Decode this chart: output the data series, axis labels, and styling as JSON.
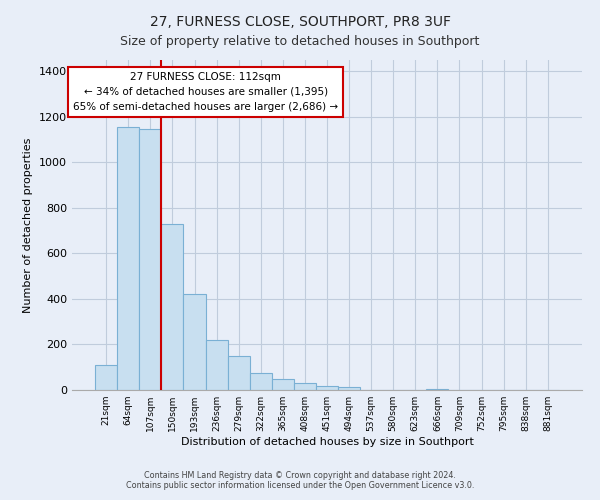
{
  "title": "27, FURNESS CLOSE, SOUTHPORT, PR8 3UF",
  "subtitle": "Size of property relative to detached houses in Southport",
  "xlabel": "Distribution of detached houses by size in Southport",
  "ylabel": "Number of detached properties",
  "bar_labels": [
    "21sqm",
    "64sqm",
    "107sqm",
    "150sqm",
    "193sqm",
    "236sqm",
    "279sqm",
    "322sqm",
    "365sqm",
    "408sqm",
    "451sqm",
    "494sqm",
    "537sqm",
    "580sqm",
    "623sqm",
    "666sqm",
    "709sqm",
    "752sqm",
    "795sqm",
    "838sqm",
    "881sqm"
  ],
  "bar_values": [
    110,
    1155,
    1145,
    730,
    420,
    220,
    150,
    75,
    50,
    30,
    18,
    13,
    0,
    0,
    0,
    5,
    0,
    0,
    0,
    0,
    0
  ],
  "bar_color": "#c8dff0",
  "bar_edge_color": "#7ab0d4",
  "highlight_bar_index": 2,
  "highlight_color": "#cc0000",
  "annotation_title": "27 FURNESS CLOSE: 112sqm",
  "annotation_line1": "← 34% of detached houses are smaller (1,395)",
  "annotation_line2": "65% of semi-detached houses are larger (2,686) →",
  "annotation_box_facecolor": "#ffffff",
  "annotation_box_edgecolor": "#cc0000",
  "ylim": [
    0,
    1450
  ],
  "yticks": [
    0,
    200,
    400,
    600,
    800,
    1000,
    1200,
    1400
  ],
  "footer_line1": "Contains HM Land Registry data © Crown copyright and database right 2024.",
  "footer_line2": "Contains public sector information licensed under the Open Government Licence v3.0.",
  "bg_color": "#e8eef8",
  "plot_bg_color": "#e8eef8",
  "grid_color": "#c0ccdc",
  "title_fontsize": 10,
  "subtitle_fontsize": 9
}
